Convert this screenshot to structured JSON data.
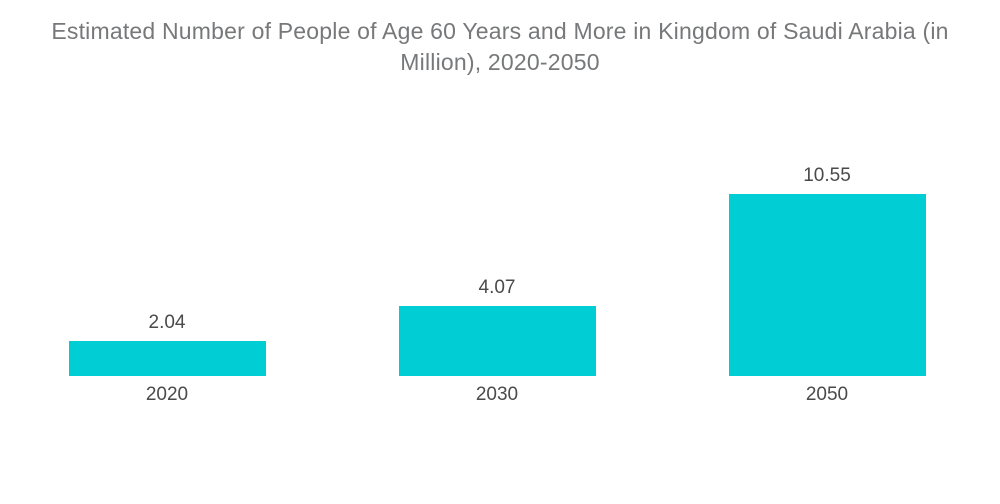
{
  "chart_data": {
    "type": "bar",
    "title": "Estimated Number of People of Age 60 Years and More in Kingdom of Saudi Arabia (in Million), 2020-2050",
    "categories": [
      "2020",
      "2030",
      "2050"
    ],
    "values": [
      2.04,
      4.07,
      10.55
    ],
    "value_labels": [
      "2.04",
      "4.07",
      "10.55"
    ],
    "xlabel": "",
    "ylabel": "",
    "ylim": [
      0,
      10.9
    ],
    "grid": false,
    "legend": false,
    "axis_lines": false,
    "layout": {
      "orientation": "vertical",
      "value_labels_position": "above-bars",
      "category_labels_position": "below-bars"
    },
    "colors": {
      "bar_fill": "#00CDD4",
      "title_text": "#77787A",
      "label_text": "#4A4A4A",
      "background": "#FFFFFF"
    }
  }
}
